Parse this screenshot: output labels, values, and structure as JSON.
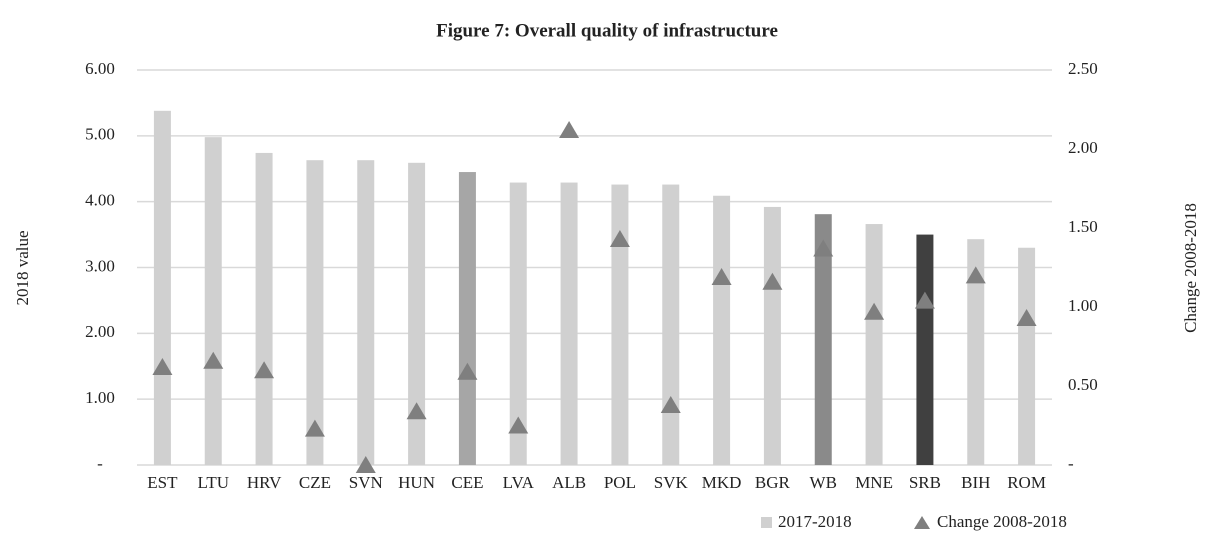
{
  "chart_data": {
    "type": "bar_triangle",
    "title": "Figure 7: Overall quality of infrastructure",
    "ylabel": "2018 value",
    "y2label": "Change 2008-2018",
    "categories": [
      "EST",
      "LTU",
      "HRV",
      "CZE",
      "SVN",
      "HUN",
      "CEE",
      "LVA",
      "ALB",
      "POL",
      "SVK",
      "MKD",
      "BGR",
      "WB",
      "MNE",
      "SRB",
      "BIH",
      "ROM"
    ],
    "series": [
      {
        "name": "2017-2018",
        "color": "#d0d0d0",
        "colors": [
          "#d0d0d0",
          "#d0d0d0",
          "#d0d0d0",
          "#d0d0d0",
          "#d0d0d0",
          "#d0d0d0",
          "#a6a6a6",
          "#d0d0d0",
          "#d0d0d0",
          "#d0d0d0",
          "#d0d0d0",
          "#d0d0d0",
          "#d0d0d0",
          "#8a8a8a",
          "#d0d0d0",
          "#404040",
          "#d0d0d0",
          "#d0d0d0"
        ],
        "values": [
          5.38,
          4.98,
          4.74,
          4.63,
          4.63,
          4.59,
          4.45,
          4.29,
          4.29,
          4.26,
          4.26,
          4.09,
          3.92,
          3.81,
          3.66,
          3.5,
          3.43,
          3.3
        ]
      },
      {
        "name": "Change 2008-2018",
        "color": "#7f7f7f",
        "axis": "y2",
        "values": [
          0.62,
          0.66,
          0.6,
          0.23,
          0.0,
          0.34,
          0.59,
          0.25,
          2.12,
          1.43,
          0.38,
          1.19,
          1.16,
          1.37,
          0.97,
          1.04,
          1.2,
          0.93
        ]
      }
    ],
    "ylim": [
      0,
      6
    ],
    "yticks": [
      {
        "value": 0,
        "label": "-"
      },
      {
        "value": 1,
        "label": "1.00"
      },
      {
        "value": 2,
        "label": "2.00"
      },
      {
        "value": 3,
        "label": "3.00"
      },
      {
        "value": 4,
        "label": "4.00"
      },
      {
        "value": 5,
        "label": "5.00"
      },
      {
        "value": 6,
        "label": "6.00"
      }
    ],
    "y2lim": [
      0,
      2.5
    ],
    "y2ticks": [
      {
        "value": 0,
        "label": "-"
      },
      {
        "value": 0.5,
        "label": "0.50"
      },
      {
        "value": 1,
        "label": "1.00"
      },
      {
        "value": 1.5,
        "label": "1.50"
      },
      {
        "value": 2,
        "label": "2.00"
      },
      {
        "value": 2.5,
        "label": "2.50"
      }
    ],
    "grid": true
  }
}
